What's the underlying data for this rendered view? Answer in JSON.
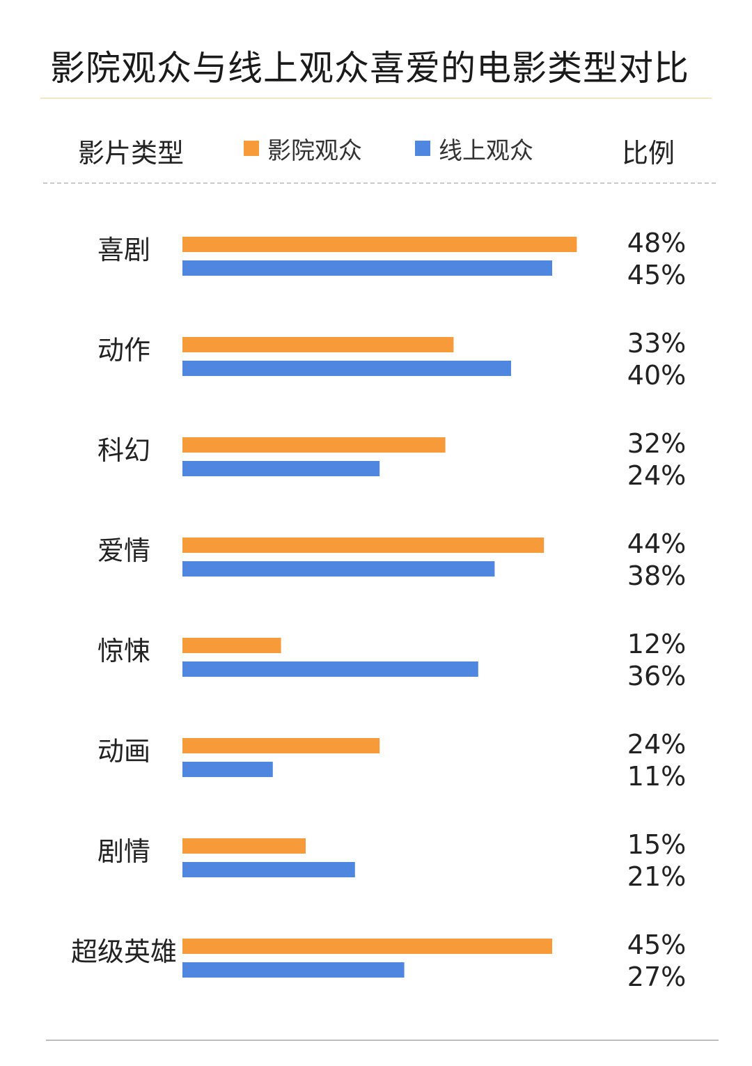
{
  "title": "影院观众与线上观众喜爱的电影类型对比",
  "header": {
    "category_label": "影片类型",
    "ratio_label": "比例"
  },
  "legend": [
    {
      "label": "影院观众",
      "color": "#f79a3a"
    },
    {
      "label": "线上观众",
      "color": "#4f86e0"
    }
  ],
  "chart_data": {
    "type": "bar",
    "orientation": "horizontal",
    "categories": [
      "喜剧",
      "动作",
      "科幻",
      "爱情",
      "惊悚",
      "动画",
      "剧情",
      "超级英雄"
    ],
    "series": [
      {
        "name": "影院观众",
        "color": "#f79a3a",
        "values": [
          48,
          33,
          32,
          44,
          12,
          24,
          15,
          45
        ],
        "labels": [
          "48%",
          "33%",
          "32%",
          "44%",
          "12%",
          "24%",
          "15%",
          "45%"
        ]
      },
      {
        "name": "线上观众",
        "color": "#4f86e0",
        "values": [
          45,
          40,
          24,
          38,
          36,
          11,
          21,
          27
        ],
        "labels": [
          "45%",
          "40%",
          "24%",
          "38%",
          "36%",
          "11%",
          "21%",
          "27%"
        ]
      }
    ],
    "unit": "%",
    "grid": false
  }
}
